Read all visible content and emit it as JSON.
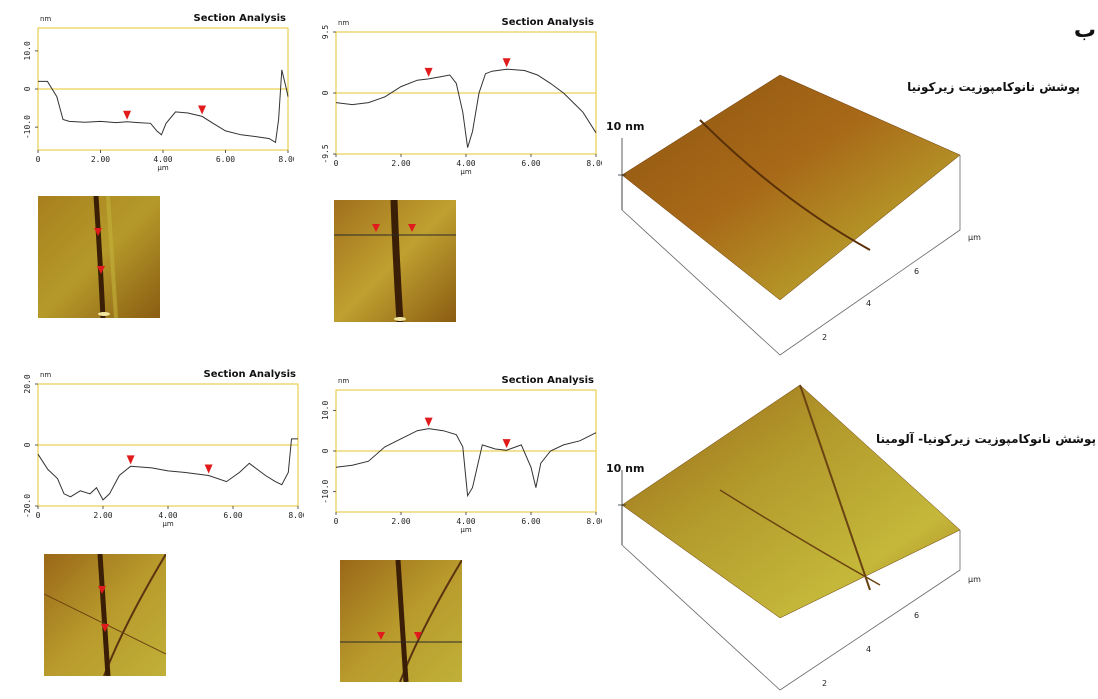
{
  "corner_label": "ب",
  "captions": {
    "top": "پوشش نانوکامپوزیت زیرکونیا",
    "bottom": "پوشش نانوکامپوزیت زیرکونیا- آلومینا"
  },
  "colors": {
    "frame": "#e6c62e",
    "trace": "#333333",
    "marker": "#e11b1b",
    "afm_dark": "#4a2a0a",
    "afm_light": "#c8c23c"
  },
  "chart_data": [
    {
      "type": "line",
      "title": "Section Analysis",
      "ylabel": "nm",
      "xlabel": "µm",
      "xlim": [
        0,
        8
      ],
      "ylim": [
        -16,
        16
      ],
      "yticks": [
        "10.0",
        "0",
        "-10.0"
      ],
      "ytick_values": [
        10,
        0,
        -10
      ],
      "xticks": [
        "0",
        "2.00",
        "4.00",
        "6.00",
        "8.00"
      ],
      "markers_x": [
        2.85,
        5.25
      ],
      "series": [
        {
          "x": [
            0,
            0.3,
            0.6,
            0.8,
            1.0,
            1.5,
            2.0,
            2.5,
            2.85,
            3.2,
            3.6,
            3.8,
            3.95,
            4.1,
            4.4,
            4.8,
            5.25,
            5.6,
            6.0,
            6.5,
            7.0,
            7.4,
            7.6,
            7.7,
            7.8,
            7.95,
            8.0
          ],
          "y": [
            2,
            2,
            -2,
            -8,
            -8.5,
            -8.7,
            -8.5,
            -8.8,
            -8.6,
            -8.8,
            -9,
            -11,
            -12,
            -9,
            -6,
            -6.3,
            -7.2,
            -9,
            -11,
            -12,
            -12.5,
            -13,
            -14,
            -8,
            5,
            0,
            -2
          ]
        }
      ]
    },
    {
      "type": "line",
      "title": "Section Analysis",
      "ylabel": "nm",
      "xlabel": "µm",
      "xlim": [
        0,
        8
      ],
      "ylim": [
        -9.5,
        9.5
      ],
      "yticks": [
        "9.5",
        "0",
        "-9.5"
      ],
      "ytick_values": [
        9.5,
        0,
        -9.5
      ],
      "xticks": [
        "0",
        "2.00",
        "4.00",
        "6.00",
        "8.00"
      ],
      "markers_x": [
        2.85,
        5.25
      ],
      "series": [
        {
          "x": [
            0,
            0.5,
            1.0,
            1.5,
            2.0,
            2.5,
            2.85,
            3.2,
            3.5,
            3.7,
            3.9,
            4.05,
            4.2,
            4.4,
            4.6,
            4.8,
            5.25,
            5.8,
            6.2,
            6.6,
            7.0,
            7.3,
            7.6,
            8.0
          ],
          "y": [
            -1.5,
            -1.8,
            -1.5,
            -0.6,
            1,
            2,
            2.2,
            2.5,
            2.8,
            1.5,
            -3,
            -8.5,
            -6,
            0,
            3,
            3.4,
            3.7,
            3.5,
            2.8,
            1.5,
            0,
            -1.5,
            -3,
            -6.2
          ]
        }
      ]
    },
    {
      "type": "line",
      "title": "Section Analysis",
      "ylabel": "nm",
      "xlabel": "µm",
      "xlim": [
        0,
        8
      ],
      "ylim": [
        -20,
        20
      ],
      "yticks": [
        "20.0",
        "0",
        "-20.0"
      ],
      "ytick_values": [
        20,
        0,
        -20
      ],
      "xticks": [
        "0",
        "2.00",
        "4.00",
        "6.00",
        "8.00"
      ],
      "markers_x": [
        2.85,
        5.25
      ],
      "series": [
        {
          "x": [
            0,
            0.3,
            0.6,
            0.8,
            1.0,
            1.3,
            1.6,
            1.8,
            2.0,
            2.2,
            2.5,
            2.85,
            3.5,
            4.0,
            4.5,
            5.25,
            5.8,
            6.2,
            6.5,
            7.0,
            7.3,
            7.5,
            7.7,
            7.8,
            8.0
          ],
          "y": [
            -3,
            -8,
            -11,
            -16,
            -17,
            -15,
            -16,
            -14,
            -18,
            -16,
            -10,
            -7,
            -7.5,
            -8.5,
            -9,
            -10,
            -12,
            -9,
            -6,
            -10,
            -12,
            -13,
            -9,
            2,
            2
          ]
        }
      ]
    },
    {
      "type": "line",
      "title": "Section Analysis",
      "ylabel": "nm",
      "xlabel": "µm",
      "xlim": [
        0,
        8
      ],
      "ylim": [
        -15,
        15
      ],
      "yticks": [
        "10.0",
        "0",
        "-10.0"
      ],
      "ytick_values": [
        10,
        0,
        -10
      ],
      "xticks": [
        "0",
        "2.00",
        "4.00",
        "6.00",
        "8.00"
      ],
      "markers_x": [
        2.85,
        5.25
      ],
      "series": [
        {
          "x": [
            0,
            0.5,
            1.0,
            1.5,
            2.0,
            2.5,
            2.85,
            3.3,
            3.7,
            3.9,
            4.05,
            4.2,
            4.5,
            4.9,
            5.25,
            5.7,
            6.0,
            6.15,
            6.3,
            6.6,
            7.0,
            7.5,
            8.0
          ],
          "y": [
            -4,
            -3.5,
            -2.5,
            1,
            3,
            5,
            5.5,
            5,
            4,
            1,
            -11,
            -9,
            1.5,
            0.5,
            0.2,
            1.5,
            -4,
            -9,
            -3,
            0,
            1.5,
            2.5,
            4.5
          ]
        }
      ]
    }
  ],
  "surface_plots": [
    {
      "z_label": "10 nm",
      "x_unit": "µm",
      "ticks": [
        "6",
        "4",
        "2"
      ]
    },
    {
      "z_label": "10 nm",
      "x_unit": "µm",
      "ticks": [
        "6",
        "4",
        "2"
      ]
    }
  ]
}
